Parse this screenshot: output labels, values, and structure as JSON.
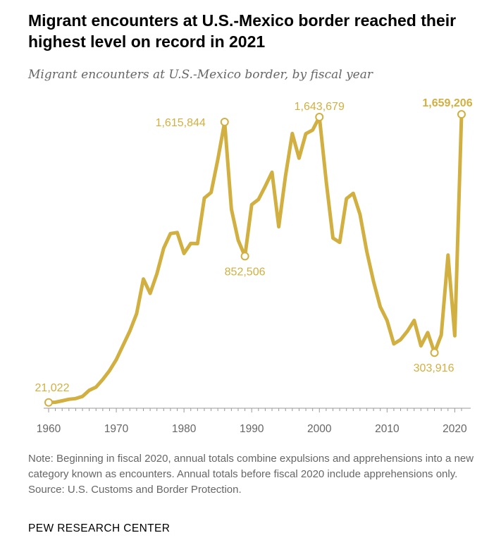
{
  "title": "Migrant encounters at U.S.-Mexico border reached their highest level on record in 2021",
  "subtitle": "Migrant encounters at U.S.-Mexico border, by fiscal year",
  "note": "Note: Beginning in fiscal 2020, annual totals combine expulsions and apprehensions into a new category known as encounters. Annual totals before fiscal 2020 include apprehensions only.",
  "source": "Source: U.S. Customs and Border Protection.",
  "brand": "PEW RESEARCH CENTER",
  "colors": {
    "line": "#d1b041",
    "axis": "#999999",
    "tick_text": "#666666"
  },
  "chart_data": {
    "type": "line",
    "title": "",
    "xlabel": "",
    "ylabel": "",
    "xlim": [
      1960,
      2021
    ],
    "ylim": [
      0,
      1700000
    ],
    "x_ticks": [
      "1960",
      "1970",
      "1980",
      "1990",
      "2000",
      "2010",
      "2020"
    ],
    "grid": false,
    "legend": "none",
    "x": [
      1960,
      1961,
      1962,
      1963,
      1964,
      1965,
      1966,
      1967,
      1968,
      1969,
      1970,
      1971,
      1972,
      1973,
      1974,
      1975,
      1976,
      1977,
      1978,
      1979,
      1980,
      1981,
      1982,
      1983,
      1984,
      1985,
      1986,
      1987,
      1988,
      1989,
      1990,
      1991,
      1992,
      1993,
      1994,
      1995,
      1996,
      1997,
      1998,
      1999,
      2000,
      2001,
      2002,
      2003,
      2004,
      2005,
      2006,
      2007,
      2008,
      2009,
      2010,
      2011,
      2012,
      2013,
      2014,
      2015,
      2016,
      2017,
      2018,
      2019,
      2020,
      2021
    ],
    "values": [
      21022,
      22000,
      30000,
      39000,
      43000,
      55000,
      90000,
      108000,
      152000,
      202000,
      265000,
      346000,
      427000,
      526000,
      723000,
      641000,
      753000,
      898000,
      981000,
      987000,
      868000,
      925000,
      924000,
      1183000,
      1215000,
      1404000,
      1615844,
      1120000,
      944000,
      852506,
      1146000,
      1175000,
      1250000,
      1330000,
      1020000,
      1310000,
      1550000,
      1410000,
      1549000,
      1570000,
      1643679,
      1280000,
      956000,
      931000,
      1180000,
      1210000,
      1090000,
      880000,
      709000,
      564000,
      487000,
      354000,
      378000,
      426000,
      487000,
      343000,
      418000,
      303916,
      404000,
      859000,
      400000,
      1659206
    ],
    "annotations": [
      {
        "x": 1960,
        "y": 21022,
        "label": "21,022"
      },
      {
        "x": 1986,
        "y": 1615844,
        "label": "1,615,844"
      },
      {
        "x": 1989,
        "y": 852506,
        "label": "852,506"
      },
      {
        "x": 2000,
        "y": 1643679,
        "label": "1,643,679"
      },
      {
        "x": 2017,
        "y": 303916,
        "label": "303,916"
      },
      {
        "x": 2021,
        "y": 1659206,
        "label": "1,659,206"
      }
    ]
  }
}
